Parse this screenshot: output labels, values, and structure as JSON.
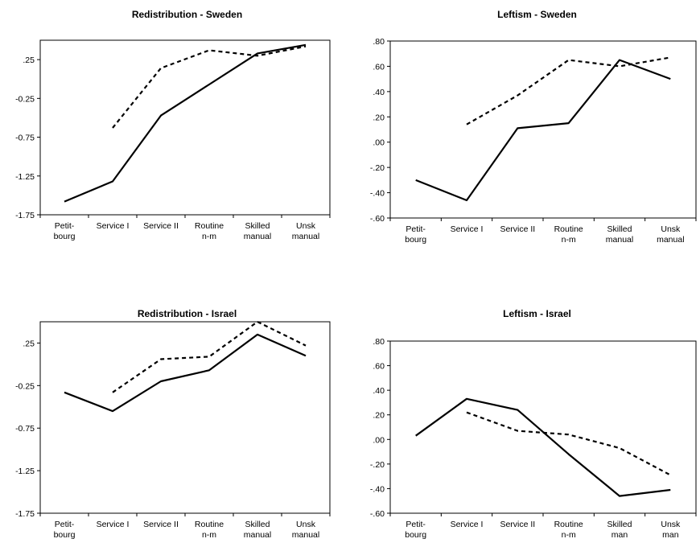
{
  "chart_data": [
    {
      "type": "line",
      "title": "Redistribution - Sweden",
      "categories": [
        [
          "Petit-",
          "bourg"
        ],
        [
          "Service I"
        ],
        [
          "Service II"
        ],
        [
          "Routine",
          "n-m"
        ],
        [
          "Skilled",
          "manual"
        ],
        [
          "Unsk",
          "manual"
        ]
      ],
      "ylim": [
        -1.75,
        0.5
      ],
      "yticks": [
        -1.75,
        -1.25,
        -0.75,
        -0.25,
        0.25
      ],
      "ytick_labels": [
        "-1.75",
        "-1.25",
        "-0.75",
        "-0.25",
        ".25"
      ],
      "series": [
        {
          "style": "solid",
          "values": [
            -1.58,
            -1.32,
            -0.47,
            -0.07,
            0.33,
            0.44
          ]
        },
        {
          "style": "dashed",
          "values": [
            null,
            -0.63,
            0.14,
            0.37,
            0.3,
            0.42
          ]
        }
      ]
    },
    {
      "type": "line",
      "title": "Leftism - Sweden",
      "categories": [
        [
          "Petit-",
          "bourg"
        ],
        [
          "Service I"
        ],
        [
          "Service II"
        ],
        [
          "Routine",
          "n-m"
        ],
        [
          "Skilled",
          "manual"
        ],
        [
          "Unsk",
          "manual"
        ]
      ],
      "ylim": [
        -0.6,
        0.8
      ],
      "yticks": [
        -0.6,
        -0.4,
        -0.2,
        0.0,
        0.2,
        0.4,
        0.6,
        0.8
      ],
      "ytick_labels": [
        "-.60",
        "-.40",
        "-.20",
        ".00",
        ".20",
        ".40",
        ".60",
        ".80"
      ],
      "series": [
        {
          "style": "solid",
          "values": [
            -0.3,
            -0.46,
            0.11,
            0.15,
            0.65,
            0.5
          ]
        },
        {
          "style": "dashed",
          "values": [
            null,
            0.14,
            0.37,
            0.65,
            0.6,
            0.67
          ]
        }
      ]
    },
    {
      "type": "line",
      "title": "Redistribution - Israel",
      "categories": [
        [
          "Petit-",
          "bourg"
        ],
        [
          "Service I"
        ],
        [
          "Service II"
        ],
        [
          "Routine",
          "n-m"
        ],
        [
          "Skilled",
          "manual"
        ],
        [
          "Unsk",
          "manual"
        ]
      ],
      "ylim": [
        -1.75,
        0.5
      ],
      "yticks": [
        -1.75,
        -1.25,
        -0.75,
        -0.25,
        0.25
      ],
      "ytick_labels": [
        "-1.75",
        "-1.25",
        "-0.75",
        "-0.25",
        ".25"
      ],
      "series": [
        {
          "style": "solid",
          "values": [
            -0.33,
            -0.55,
            -0.2,
            -0.07,
            0.35,
            0.1
          ]
        },
        {
          "style": "dashed",
          "values": [
            null,
            -0.33,
            0.06,
            0.09,
            0.5,
            0.22
          ]
        }
      ]
    },
    {
      "type": "line",
      "title": "Leftism - Israel",
      "categories": [
        [
          "Petit-",
          "bourg"
        ],
        [
          "Service I"
        ],
        [
          "Service II"
        ],
        [
          "Routine",
          "n-m"
        ],
        [
          "Skilled",
          "man"
        ],
        [
          "Unsk",
          "man"
        ]
      ],
      "ylim": [
        -0.6,
        0.8
      ],
      "yticks": [
        -0.6,
        -0.4,
        -0.2,
        0.0,
        0.2,
        0.4,
        0.6,
        0.8
      ],
      "ytick_labels": [
        "-.60",
        "-.40",
        "-.20",
        ".00",
        ".20",
        ".40",
        ".60",
        ".80"
      ],
      "series": [
        {
          "style": "solid",
          "values": [
            0.03,
            0.33,
            0.24,
            -0.12,
            -0.46,
            -0.41
          ]
        },
        {
          "style": "dashed",
          "values": [
            null,
            0.22,
            0.07,
            0.04,
            -0.07,
            -0.29
          ]
        }
      ]
    }
  ]
}
